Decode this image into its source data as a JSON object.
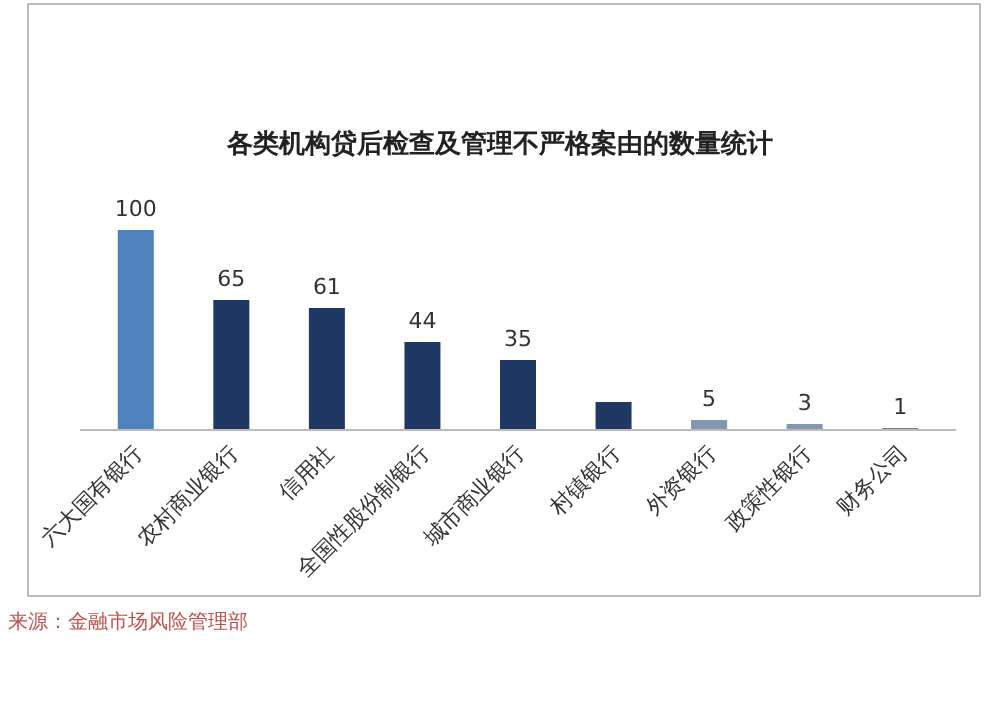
{
  "chart_data": {
    "type": "bar",
    "title": "各类机构贷后检查及管理不严格案由的数量统计",
    "categories": [
      "六大国有银行",
      "农村商业银行",
      "信用社",
      "全国性股份制银行",
      "城市商业银行",
      "村镇银行",
      "外资银行",
      "政策性银行",
      "财务公司"
    ],
    "values": [
      100,
      65,
      61,
      44,
      35,
      14,
      5,
      3,
      1
    ],
    "colors": [
      "#4f81bd",
      "#1f3864",
      "#1f3864",
      "#1f3864",
      "#1f3864",
      "#1f3864",
      "#8496b0",
      "#8496b0",
      "#7f7f7f"
    ],
    "value_labels": [
      "100",
      "65",
      "61",
      "44",
      "35",
      null,
      "5",
      "3",
      "1"
    ],
    "annotations": [
      "来源：金融市场风险管理部"
    ]
  }
}
